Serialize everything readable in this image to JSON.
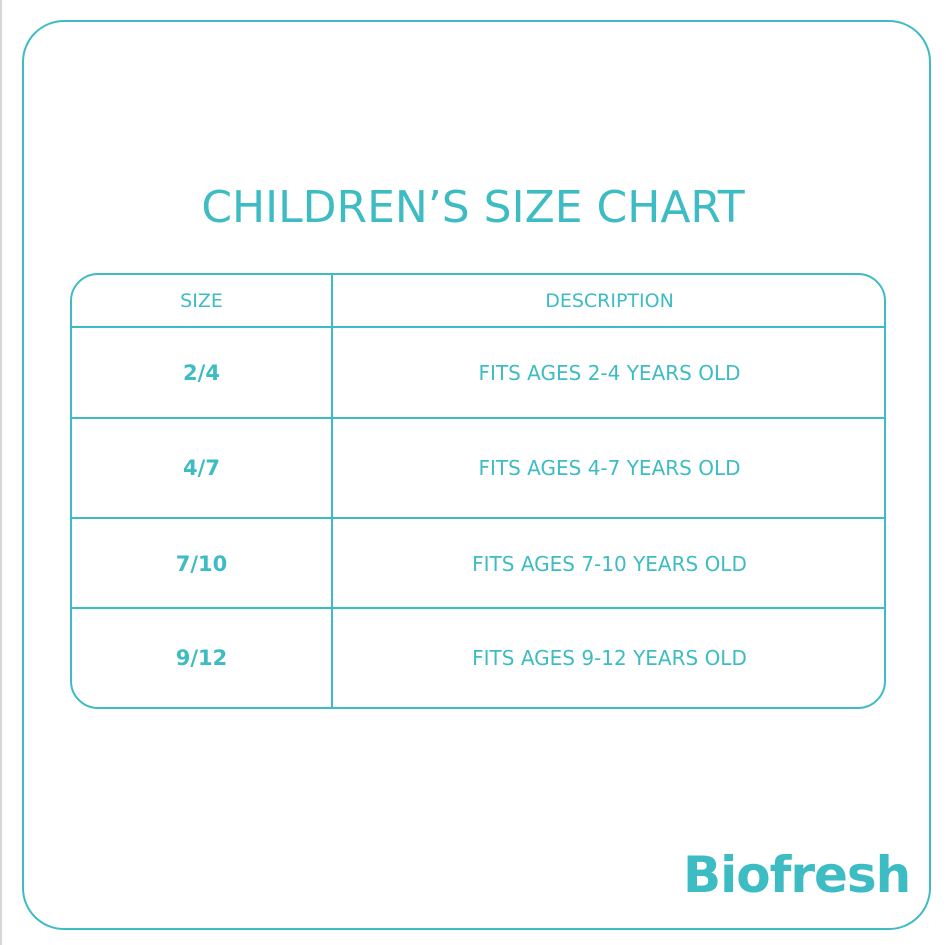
{
  "title": "CHILDREN’S SIZE CHART",
  "table": {
    "headers": [
      "SIZE",
      "DESCRIPTION"
    ],
    "rows": [
      {
        "size": "2/4",
        "description": "FITS AGES 2-4 YEARS OLD"
      },
      {
        "size": "4/7",
        "description": "FITS AGES 4-7 YEARS OLD"
      },
      {
        "size": "7/10",
        "description": "FITS AGES 7-10 YEARS OLD"
      },
      {
        "size": "9/12",
        "description": "FITS AGES 9-12 YEARS OLD"
      }
    ]
  },
  "brand": {
    "logo_text": "Biofresh",
    "accent_color": "#3dbcc4"
  }
}
